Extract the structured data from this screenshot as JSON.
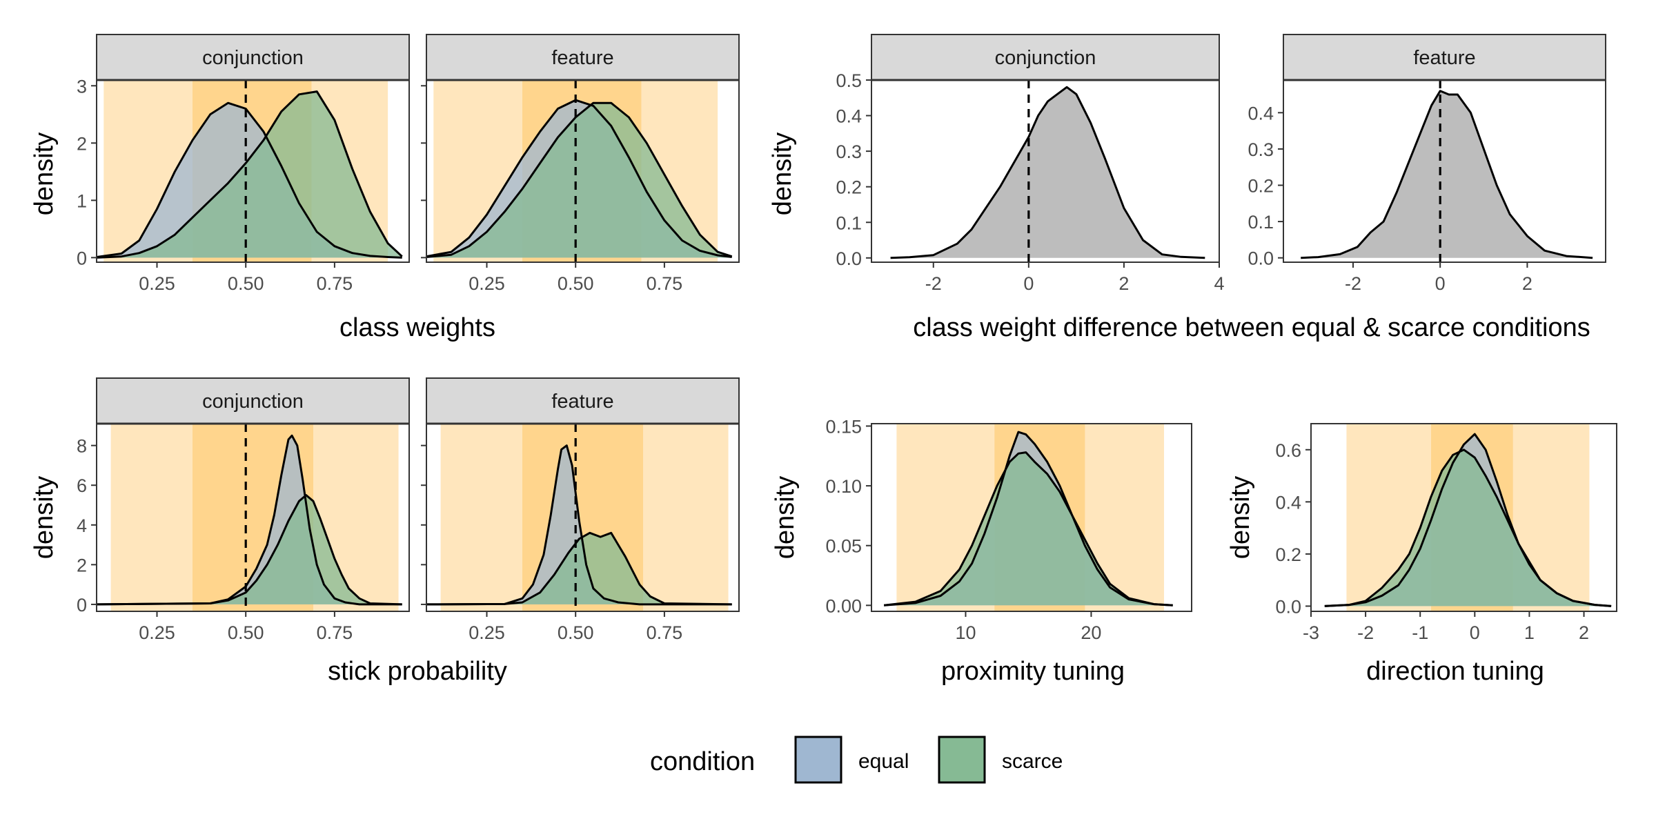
{
  "figure": {
    "legend": {
      "title": "condition",
      "placement": "bottom",
      "keys": [
        {
          "label": "equal",
          "color": "#9fb7d1"
        },
        {
          "label": "scarce",
          "color": "#86ba94"
        }
      ]
    },
    "colors": {
      "equal": "#9fb7d1",
      "scarce": "#86ba94",
      "difference": "#bdbdbd",
      "band_outer": "#ffe6bd",
      "band_inner": "#ffd58d",
      "strip": "#d9d9d9"
    }
  },
  "chart_data": [
    {
      "id": "class_weights",
      "type": "area",
      "xlabel": "class weights",
      "ylabel": "density",
      "xlim": [
        0.08,
        0.96
      ],
      "ylim": [
        -0.08,
        3.1
      ],
      "xticks": [
        "0.25",
        "0.50",
        "0.75"
      ],
      "xtick_values": [
        0.25,
        0.5,
        0.75
      ],
      "yticks": [
        "0",
        "1",
        "2",
        "3"
      ],
      "ytick_values": [
        0,
        1,
        2,
        3
      ],
      "ref_line": 0.5,
      "band_outer": [
        0.1,
        0.9
      ],
      "band_inner": [
        0.35,
        0.685
      ],
      "panels": [
        {
          "strip": "conjunction",
          "series": [
            {
              "name": "equal",
              "x": [
                0.08,
                0.15,
                0.2,
                0.25,
                0.3,
                0.35,
                0.4,
                0.45,
                0.5,
                0.55,
                0.6,
                0.65,
                0.7,
                0.75,
                0.8,
                0.85,
                0.9,
                0.94
              ],
              "y": [
                0.01,
                0.07,
                0.3,
                0.85,
                1.5,
                2.05,
                2.5,
                2.7,
                2.6,
                2.2,
                1.6,
                0.95,
                0.45,
                0.2,
                0.08,
                0.03,
                0.01,
                0.0
              ]
            },
            {
              "name": "scarce",
              "x": [
                0.08,
                0.15,
                0.2,
                0.25,
                0.3,
                0.35,
                0.4,
                0.45,
                0.5,
                0.55,
                0.6,
                0.65,
                0.7,
                0.75,
                0.8,
                0.85,
                0.9,
                0.94
              ],
              "y": [
                0.0,
                0.02,
                0.08,
                0.2,
                0.4,
                0.7,
                1.0,
                1.3,
                1.65,
                2.05,
                2.55,
                2.85,
                2.9,
                2.4,
                1.55,
                0.8,
                0.25,
                0.02
              ]
            }
          ]
        },
        {
          "strip": "feature",
          "series": [
            {
              "name": "equal",
              "x": [
                0.08,
                0.15,
                0.2,
                0.25,
                0.3,
                0.35,
                0.4,
                0.45,
                0.5,
                0.55,
                0.6,
                0.65,
                0.7,
                0.75,
                0.8,
                0.85,
                0.9,
                0.94
              ],
              "y": [
                0.02,
                0.1,
                0.35,
                0.75,
                1.25,
                1.75,
                2.2,
                2.6,
                2.75,
                2.65,
                2.3,
                1.75,
                1.15,
                0.65,
                0.3,
                0.12,
                0.04,
                0.01
              ]
            },
            {
              "name": "scarce",
              "x": [
                0.08,
                0.15,
                0.2,
                0.25,
                0.3,
                0.35,
                0.4,
                0.45,
                0.5,
                0.55,
                0.6,
                0.65,
                0.7,
                0.75,
                0.8,
                0.85,
                0.9,
                0.94
              ],
              "y": [
                0.01,
                0.05,
                0.2,
                0.45,
                0.8,
                1.2,
                1.65,
                2.1,
                2.45,
                2.7,
                2.7,
                2.45,
                2.0,
                1.45,
                0.9,
                0.4,
                0.1,
                0.02
              ]
            }
          ]
        }
      ]
    },
    {
      "id": "class_weight_difference",
      "type": "area",
      "xlabel": "class weight difference between equal & scarce conditions",
      "ylabel": "density",
      "ref_line": 0,
      "panels": [
        {
          "strip": "conjunction",
          "xlim": [
            -3.3,
            4.0
          ],
          "ylim": [
            -0.012,
            0.5
          ],
          "xticks": [
            "-2",
            "0",
            "2",
            "4"
          ],
          "xtick_values": [
            -2,
            0,
            2,
            4
          ],
          "yticks": [
            "0.0",
            "0.1",
            "0.2",
            "0.3",
            "0.4",
            "0.5"
          ],
          "ytick_values": [
            0,
            0.1,
            0.2,
            0.3,
            0.4,
            0.5
          ],
          "series": [
            {
              "name": "difference",
              "x": [
                -2.9,
                -2.5,
                -2.0,
                -1.5,
                -1.2,
                -0.9,
                -0.6,
                -0.3,
                0.0,
                0.2,
                0.4,
                0.6,
                0.8,
                1.0,
                1.3,
                1.6,
                2.0,
                2.4,
                2.8,
                3.2,
                3.7
              ],
              "y": [
                0.0,
                0.002,
                0.008,
                0.04,
                0.08,
                0.14,
                0.2,
                0.27,
                0.34,
                0.4,
                0.44,
                0.46,
                0.48,
                0.46,
                0.38,
                0.28,
                0.14,
                0.05,
                0.01,
                0.003,
                0.0
              ]
            }
          ]
        },
        {
          "strip": "feature",
          "xlim": [
            -3.6,
            3.8
          ],
          "ylim": [
            -0.012,
            0.49
          ],
          "xticks": [
            "-2",
            "0",
            "2"
          ],
          "xtick_values": [
            -2,
            0,
            2
          ],
          "yticks": [
            "0.0",
            "0.1",
            "0.2",
            "0.3",
            "0.4"
          ],
          "ytick_values": [
            0,
            0.1,
            0.2,
            0.3,
            0.4
          ],
          "series": [
            {
              "name": "difference",
              "x": [
                -3.2,
                -2.8,
                -2.3,
                -1.9,
                -1.6,
                -1.3,
                -1.0,
                -0.7,
                -0.4,
                -0.2,
                0.0,
                0.2,
                0.4,
                0.7,
                1.0,
                1.3,
                1.6,
                2.0,
                2.4,
                2.9,
                3.5
              ],
              "y": [
                0.0,
                0.002,
                0.01,
                0.03,
                0.07,
                0.1,
                0.18,
                0.27,
                0.36,
                0.42,
                0.46,
                0.45,
                0.45,
                0.4,
                0.3,
                0.2,
                0.12,
                0.06,
                0.02,
                0.005,
                0.0
              ]
            }
          ]
        }
      ]
    },
    {
      "id": "stick_probability",
      "type": "area",
      "xlabel": "stick probability",
      "ylabel": "density",
      "xlim": [
        0.08,
        0.96
      ],
      "ylim": [
        -0.35,
        9.1
      ],
      "xticks": [
        "0.25",
        "0.50",
        "0.75"
      ],
      "xtick_values": [
        0.25,
        0.5,
        0.75
      ],
      "yticks": [
        "0",
        "2",
        "4",
        "6",
        "8"
      ],
      "ytick_values": [
        0,
        2,
        4,
        6,
        8
      ],
      "ref_line": 0.5,
      "band_outer": [
        0.12,
        0.93
      ],
      "band_inner": [
        0.35,
        0.69
      ],
      "panels": [
        {
          "strip": "conjunction",
          "series": [
            {
              "name": "equal",
              "x": [
                0.08,
                0.4,
                0.45,
                0.5,
                0.53,
                0.56,
                0.58,
                0.6,
                0.62,
                0.63,
                0.645,
                0.66,
                0.68,
                0.7,
                0.72,
                0.75,
                0.78,
                0.82,
                0.94
              ],
              "y": [
                0.0,
                0.05,
                0.25,
                0.9,
                1.8,
                3.0,
                4.5,
                6.5,
                8.3,
                8.5,
                8.0,
                6.3,
                3.8,
                2.0,
                1.0,
                0.3,
                0.1,
                0.0,
                0.0
              ]
            },
            {
              "name": "scarce",
              "x": [
                0.08,
                0.4,
                0.45,
                0.5,
                0.53,
                0.56,
                0.59,
                0.62,
                0.65,
                0.67,
                0.69,
                0.71,
                0.73,
                0.75,
                0.77,
                0.79,
                0.82,
                0.85,
                0.94
              ],
              "y": [
                0.0,
                0.05,
                0.2,
                0.6,
                1.2,
                2.0,
                3.0,
                4.2,
                5.2,
                5.5,
                5.2,
                4.3,
                3.3,
                2.3,
                1.5,
                0.8,
                0.3,
                0.05,
                0.0
              ]
            }
          ]
        },
        {
          "strip": "feature",
          "series": [
            {
              "name": "equal",
              "x": [
                0.08,
                0.3,
                0.35,
                0.38,
                0.41,
                0.43,
                0.45,
                0.46,
                0.475,
                0.49,
                0.51,
                0.53,
                0.55,
                0.58,
                0.62,
                0.68,
                0.94
              ],
              "y": [
                0.0,
                0.02,
                0.3,
                1.0,
                2.5,
                4.5,
                6.8,
                7.8,
                8.0,
                7.0,
                4.2,
                2.0,
                0.8,
                0.3,
                0.1,
                0.0,
                0.0
              ]
            },
            {
              "name": "scarce",
              "x": [
                0.08,
                0.3,
                0.35,
                0.4,
                0.44,
                0.48,
                0.51,
                0.54,
                0.57,
                0.6,
                0.62,
                0.64,
                0.66,
                0.68,
                0.71,
                0.75,
                0.94
              ],
              "y": [
                0.0,
                0.02,
                0.1,
                0.6,
                1.5,
                2.6,
                3.3,
                3.6,
                3.4,
                3.6,
                3.0,
                2.4,
                1.7,
                1.0,
                0.4,
                0.05,
                0.0
              ]
            }
          ]
        }
      ]
    },
    {
      "id": "proximity_tuning",
      "type": "area",
      "xlabel": "proximity tuning",
      "ylabel": "density",
      "xlim": [
        2.5,
        28.0
      ],
      "ylim": [
        -0.005,
        0.152
      ],
      "xticks": [
        "10",
        "20"
      ],
      "xtick_values": [
        10,
        20
      ],
      "yticks": [
        "0.00",
        "0.05",
        "0.10",
        "0.15"
      ],
      "ytick_values": [
        0,
        0.05,
        0.1,
        0.15
      ],
      "band_outer": [
        4.5,
        25.8
      ],
      "band_inner": [
        12.3,
        19.5
      ],
      "panels": [
        {
          "strip": "",
          "series": [
            {
              "name": "equal",
              "x": [
                3.5,
                6.0,
                8.0,
                9.5,
                10.5,
                11.5,
                12.5,
                13.5,
                14.2,
                14.8,
                15.5,
                16.5,
                17.5,
                18.5,
                19.5,
                20.5,
                21.5,
                23.0,
                25.0,
                26.5
              ],
              "y": [
                0.0,
                0.002,
                0.008,
                0.02,
                0.035,
                0.06,
                0.09,
                0.125,
                0.145,
                0.143,
                0.135,
                0.12,
                0.1,
                0.075,
                0.05,
                0.03,
                0.015,
                0.005,
                0.001,
                0.0
              ]
            },
            {
              "name": "scarce",
              "x": [
                3.5,
                6.0,
                8.0,
                9.5,
                10.5,
                11.5,
                12.5,
                13.5,
                14.2,
                14.8,
                15.5,
                16.5,
                17.5,
                18.5,
                19.5,
                20.5,
                21.5,
                23.0,
                25.0,
                26.5
              ],
              "y": [
                0.0,
                0.003,
                0.012,
                0.03,
                0.05,
                0.075,
                0.1,
                0.12,
                0.127,
                0.128,
                0.12,
                0.11,
                0.095,
                0.075,
                0.055,
                0.035,
                0.018,
                0.006,
                0.001,
                0.0
              ]
            }
          ]
        }
      ]
    },
    {
      "id": "direction_tuning",
      "type": "area",
      "xlabel": "direction tuning",
      "ylabel": "density",
      "xlim": [
        -3.0,
        2.6
      ],
      "ylim": [
        -0.02,
        0.7
      ],
      "xticks": [
        "-3",
        "-2",
        "-1",
        "0",
        "1",
        "2"
      ],
      "xtick_values": [
        -3,
        -2,
        -1,
        0,
        1,
        2
      ],
      "yticks": [
        "0.0",
        "0.2",
        "0.4",
        "0.6"
      ],
      "ytick_values": [
        0,
        0.2,
        0.4,
        0.6
      ],
      "band_outer": [
        -2.35,
        2.1
      ],
      "band_inner": [
        -0.8,
        0.7
      ],
      "panels": [
        {
          "strip": "",
          "series": [
            {
              "name": "equal",
              "x": [
                -2.75,
                -2.3,
                -2.0,
                -1.7,
                -1.4,
                -1.2,
                -1.0,
                -0.8,
                -0.6,
                -0.4,
                -0.2,
                0.0,
                0.2,
                0.4,
                0.6,
                0.8,
                1.0,
                1.2,
                1.5,
                1.8,
                2.2,
                2.5
              ],
              "y": [
                0.0,
                0.005,
                0.015,
                0.04,
                0.08,
                0.14,
                0.22,
                0.33,
                0.45,
                0.55,
                0.62,
                0.66,
                0.6,
                0.48,
                0.35,
                0.24,
                0.16,
                0.1,
                0.05,
                0.02,
                0.005,
                0.0
              ]
            },
            {
              "name": "scarce",
              "x": [
                -2.75,
                -2.3,
                -2.0,
                -1.7,
                -1.4,
                -1.2,
                -1.0,
                -0.8,
                -0.6,
                -0.4,
                -0.2,
                0.0,
                0.2,
                0.4,
                0.6,
                0.8,
                1.0,
                1.2,
                1.5,
                1.8,
                2.2,
                2.5
              ],
              "y": [
                0.0,
                0.005,
                0.02,
                0.07,
                0.14,
                0.2,
                0.3,
                0.42,
                0.52,
                0.58,
                0.6,
                0.57,
                0.5,
                0.42,
                0.33,
                0.24,
                0.17,
                0.1,
                0.05,
                0.02,
                0.005,
                0.0
              ]
            }
          ]
        }
      ]
    }
  ]
}
